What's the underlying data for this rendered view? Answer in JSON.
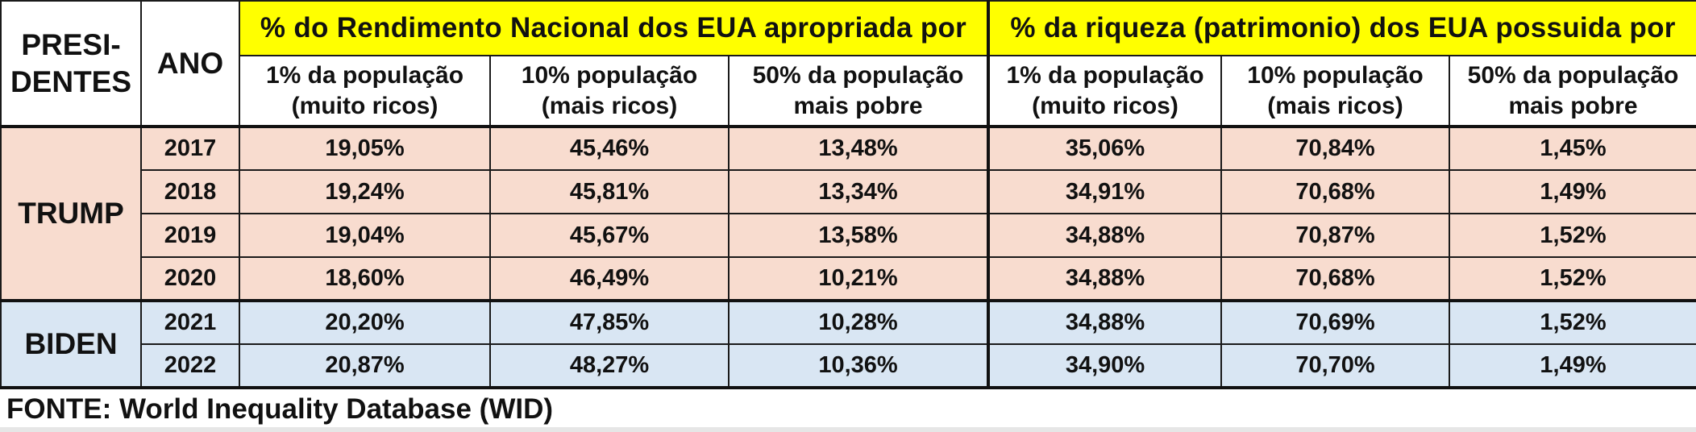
{
  "chart_data": {
    "type": "table",
    "title": "",
    "header": {
      "presidents_label_line1": "PRESI-",
      "presidents_label_line2": "DENTES",
      "year_label": "ANO",
      "group_income": "% do Rendimento Nacional dos EUA apropriada por",
      "group_wealth": "% da riqueza (patrimonio) dos EUA possuida por",
      "income_columns": [
        {
          "line1": "1% da população",
          "line2": "(muito ricos)"
        },
        {
          "line1": "10% população",
          "line2": "(mais ricos)"
        },
        {
          "line1": "50% da população",
          "line2": "mais pobre"
        }
      ],
      "wealth_columns": [
        {
          "line1": "1% da população",
          "line2": "(muito ricos)"
        },
        {
          "line1": "10% população",
          "line2": "(mais ricos)"
        },
        {
          "line1": "50% da população",
          "line2": "mais pobre"
        }
      ]
    },
    "presidents": [
      {
        "name": "TRUMP",
        "color": "#f8dccf"
      },
      {
        "name": "BIDEN",
        "color": "#d9e6f3"
      }
    ],
    "rows": [
      {
        "year": "2017",
        "values": [
          "19,05%",
          "45,46%",
          "13,48%",
          "35,06%",
          "70,84%",
          "1,45%"
        ]
      },
      {
        "year": "2018",
        "values": [
          "19,24%",
          "45,81%",
          "13,34%",
          "34,91%",
          "70,68%",
          "1,49%"
        ]
      },
      {
        "year": "2019",
        "values": [
          "19,04%",
          "45,67%",
          "13,58%",
          "34,88%",
          "70,87%",
          "1,52%"
        ]
      },
      {
        "year": "2020",
        "values": [
          "18,60%",
          "46,49%",
          "10,21%",
          "34,88%",
          "70,68%",
          "1,52%"
        ]
      },
      {
        "year": "2021",
        "values": [
          "20,20%",
          "47,85%",
          "10,28%",
          "34,88%",
          "70,69%",
          "1,52%"
        ]
      },
      {
        "year": "2022",
        "values": [
          "20,87%",
          "48,27%",
          "10,36%",
          "34,90%",
          "70,70%",
          "1,49%"
        ]
      }
    ],
    "header_color": "#ffff00",
    "source": "FONTE: World Inequality Database (WID)"
  }
}
